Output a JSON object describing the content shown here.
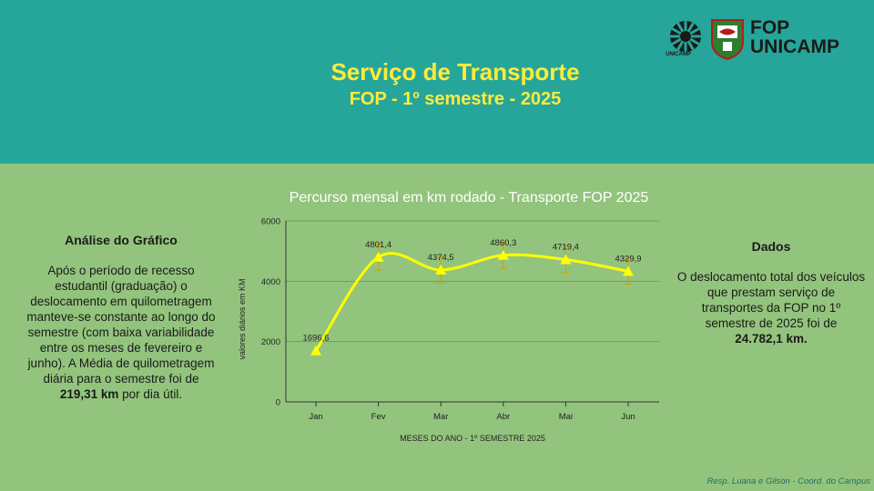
{
  "header": {
    "title": "Serviço de Transporte",
    "subtitle": "FOP - 1º semestre - 2025",
    "logo_line1": "FOP",
    "logo_line2": "UNICAMP",
    "logo_unicamp_caption": "UNICAMP"
  },
  "left_panel": {
    "heading": "Análise do Gráfico",
    "text_before": "Após o período de recesso estudantil (graduação) o deslocamento em quilometragem manteve-se constante ao longo do semestre (com baixa variabilidade entre os meses de fevereiro e junho). A Média de quilometragem diária para o semestre foi de ",
    "text_bold": "219,31 km",
    "text_after": " por dia útil."
  },
  "right_panel": {
    "heading": "Dados",
    "text": "O deslocamento total dos veículos que prestam serviço de transportes da FOP no 1º semestre de 2025  foi de",
    "text_bold": "24.782,1 km."
  },
  "chart_data": {
    "type": "line",
    "title": "Percurso mensal em km rodado - Transporte FOP 2025",
    "xlabel": "MESES DO ANO - 1º SEMESTRE 2025",
    "ylabel": "valores diários em KM",
    "categories": [
      "Jan",
      "Fev",
      "Mar",
      "Abr",
      "Mai",
      "Jun"
    ],
    "values": [
      1696.6,
      4801.4,
      4374.5,
      4860.3,
      4719.4,
      4329.9
    ],
    "data_labels": [
      "1696,6",
      "4801,4",
      "4374,5",
      "4860,3",
      "4719,4",
      "4329,9"
    ],
    "error_bars": [
      0,
      430,
      430,
      430,
      430,
      430
    ],
    "ylim": [
      0,
      6000
    ],
    "yticks": [
      0,
      2000,
      4000,
      6000
    ],
    "grid": true,
    "legend": "none",
    "colors": {
      "line": "#ffff00",
      "gridline": "#6b9e55",
      "errorbar": "#c9a400",
      "axis": "#333333"
    }
  },
  "footer": "Resp. Luana e Gilson - Coord. do Campus"
}
